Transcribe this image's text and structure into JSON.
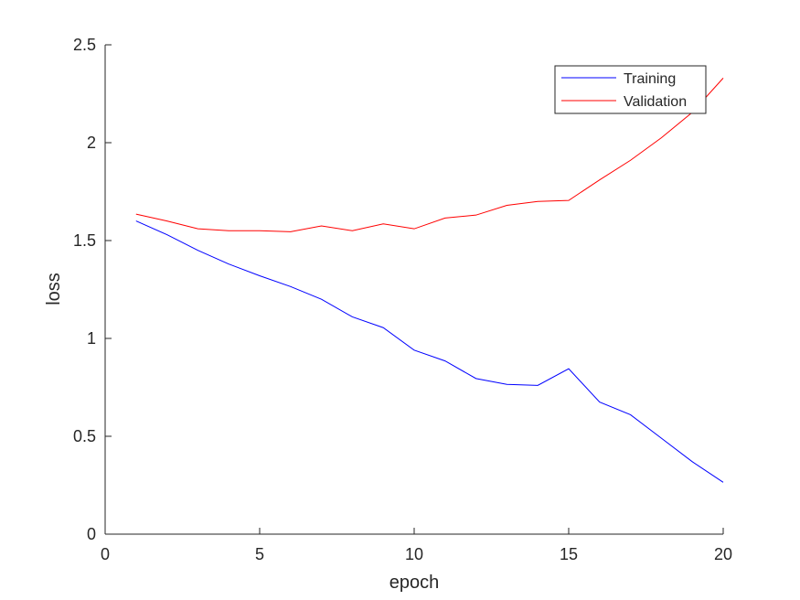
{
  "chart_data": {
    "type": "line",
    "xlabel": "epoch",
    "ylabel": "loss",
    "xlim": [
      0,
      20
    ],
    "ylim": [
      0,
      2.5
    ],
    "xticks": [
      0,
      5,
      10,
      15,
      20
    ],
    "yticks": [
      0,
      0.5,
      1,
      1.5,
      2,
      2.5
    ],
    "xtick_labels": [
      "0",
      "5",
      "10",
      "15",
      "20"
    ],
    "ytick_labels": [
      "0",
      "0.5",
      "1",
      "1.5",
      "2",
      "2.5"
    ],
    "grid": false,
    "legend_position": "top-right",
    "x": [
      1,
      2,
      3,
      4,
      5,
      6,
      7,
      8,
      9,
      10,
      11,
      12,
      13,
      14,
      15,
      16,
      17,
      18,
      19,
      20
    ],
    "series": [
      {
        "name": "Training",
        "color": "#0000ff",
        "values": [
          1.6,
          1.53,
          1.45,
          1.38,
          1.32,
          1.265,
          1.2,
          1.11,
          1.055,
          0.94,
          0.885,
          0.795,
          0.765,
          0.76,
          0.845,
          0.675,
          0.61,
          0.49,
          0.37,
          0.265
        ]
      },
      {
        "name": "Validation",
        "color": "#ff0000",
        "values": [
          1.635,
          1.6,
          1.56,
          1.55,
          1.55,
          1.545,
          1.575,
          1.55,
          1.585,
          1.56,
          1.615,
          1.63,
          1.68,
          1.7,
          1.705,
          1.81,
          1.91,
          2.025,
          2.155,
          2.33
        ]
      }
    ]
  }
}
